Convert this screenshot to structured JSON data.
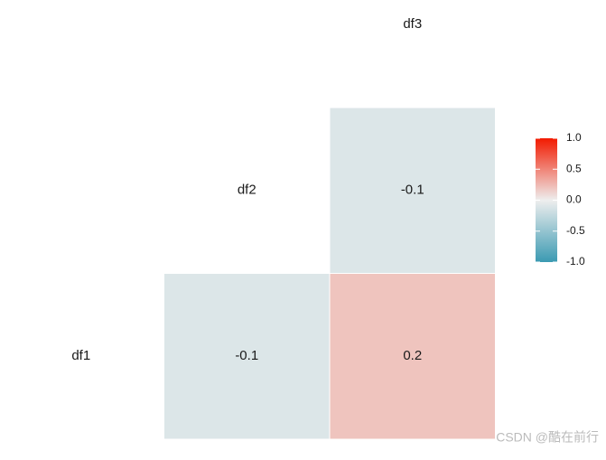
{
  "chart_data": {
    "type": "heatmap",
    "variables": [
      "df1",
      "df2",
      "df3"
    ],
    "values": [
      [
        null,
        -0.1,
        0.2
      ],
      [
        null,
        null,
        -0.1
      ],
      [
        null,
        null,
        null
      ]
    ],
    "colors": [
      "#3B9AB2",
      "#EEEEEE",
      "#F21A00"
    ],
    "colorbar_lim": [
      -1,
      1
    ],
    "colorbar_ticks": [
      {
        "value": 1,
        "label": "1.0"
      },
      {
        "value": 0.5,
        "label": "0.5"
      },
      {
        "value": 0,
        "label": "0.0"
      },
      {
        "value": -0.5,
        "label": "-0.5"
      },
      {
        "value": -1,
        "label": "-1.0"
      }
    ],
    "watermark": "CSDN @酷在前行"
  }
}
